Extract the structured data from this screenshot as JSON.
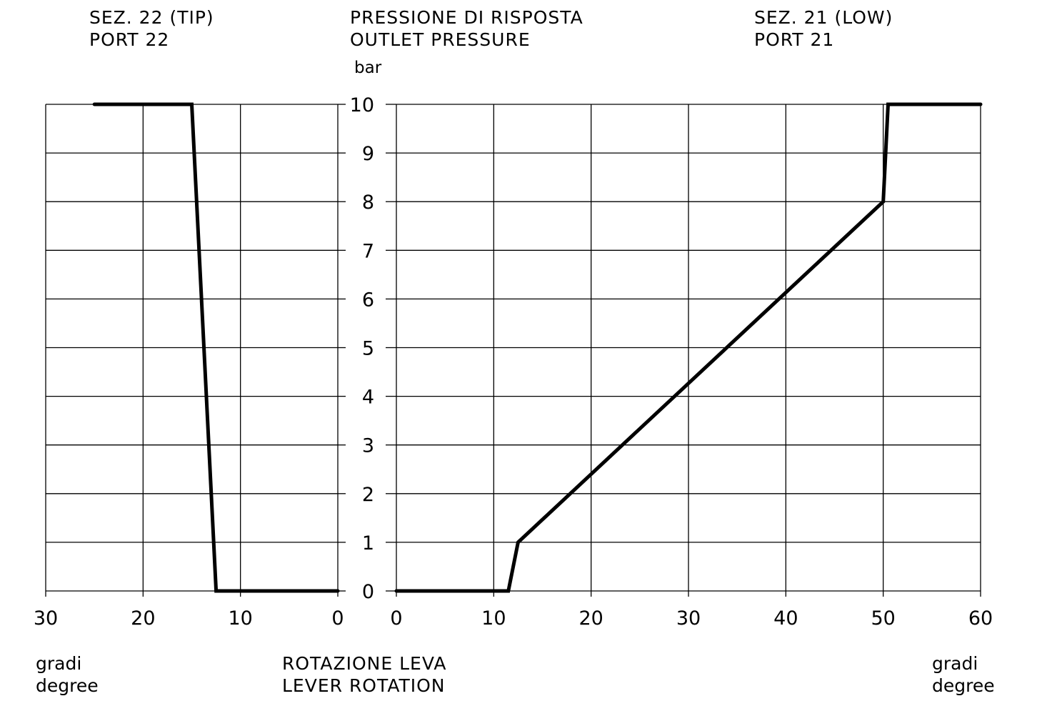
{
  "header": {
    "left_title_1": "SEZ. 22 (TIP)",
    "left_title_2": "PORT 22",
    "center_title_1": "PRESSIONE DI RISPOSTA",
    "center_title_2": "OUTLET PRESSURE",
    "right_title_1": "SEZ. 21 (LOW)",
    "right_title_2": "PORT 21"
  },
  "footer": {
    "left_unit_1": "gradi",
    "left_unit_2": "degree",
    "center_1": "ROTAZIONE LEVA",
    "center_2": "LEVER ROTATION",
    "right_unit_1": "gradi",
    "right_unit_2": "degree"
  },
  "axis_unit": "bar",
  "chart_data": [
    {
      "type": "line",
      "title": "SEZ. 22 (TIP) PORT 22",
      "xlabel": "ROTAZIONE LEVA / LEVER ROTATION (gradi / degree)",
      "ylabel": "bar",
      "xlim": [
        30,
        0
      ],
      "ylim": [
        0,
        10
      ],
      "x_ticks": [
        30,
        20,
        10,
        0
      ],
      "y_ticks": [
        0,
        1,
        2,
        3,
        4,
        5,
        6,
        7,
        8,
        9,
        10
      ],
      "grid": true,
      "series": [
        {
          "x": [
            25,
            15,
            12.5,
            0
          ],
          "y": [
            10,
            10,
            0,
            0
          ]
        }
      ]
    },
    {
      "type": "line",
      "title": "SEZ. 21 (LOW) PORT 21",
      "xlabel": "ROTAZIONE LEVA / LEVER ROTATION (gradi / degree)",
      "ylabel": "bar",
      "xlim": [
        0,
        60
      ],
      "ylim": [
        0,
        10
      ],
      "x_ticks": [
        0,
        10,
        20,
        30,
        40,
        50,
        60
      ],
      "y_ticks": [
        0,
        1,
        2,
        3,
        4,
        5,
        6,
        7,
        8,
        9,
        10
      ],
      "grid": true,
      "series": [
        {
          "x": [
            0,
            11.5,
            12.5,
            50,
            50.5,
            60
          ],
          "y": [
            0,
            0,
            1,
            8,
            10,
            10
          ]
        }
      ]
    }
  ],
  "colors": {
    "line": "#000000",
    "grid": "#000000",
    "background": "#ffffff"
  }
}
